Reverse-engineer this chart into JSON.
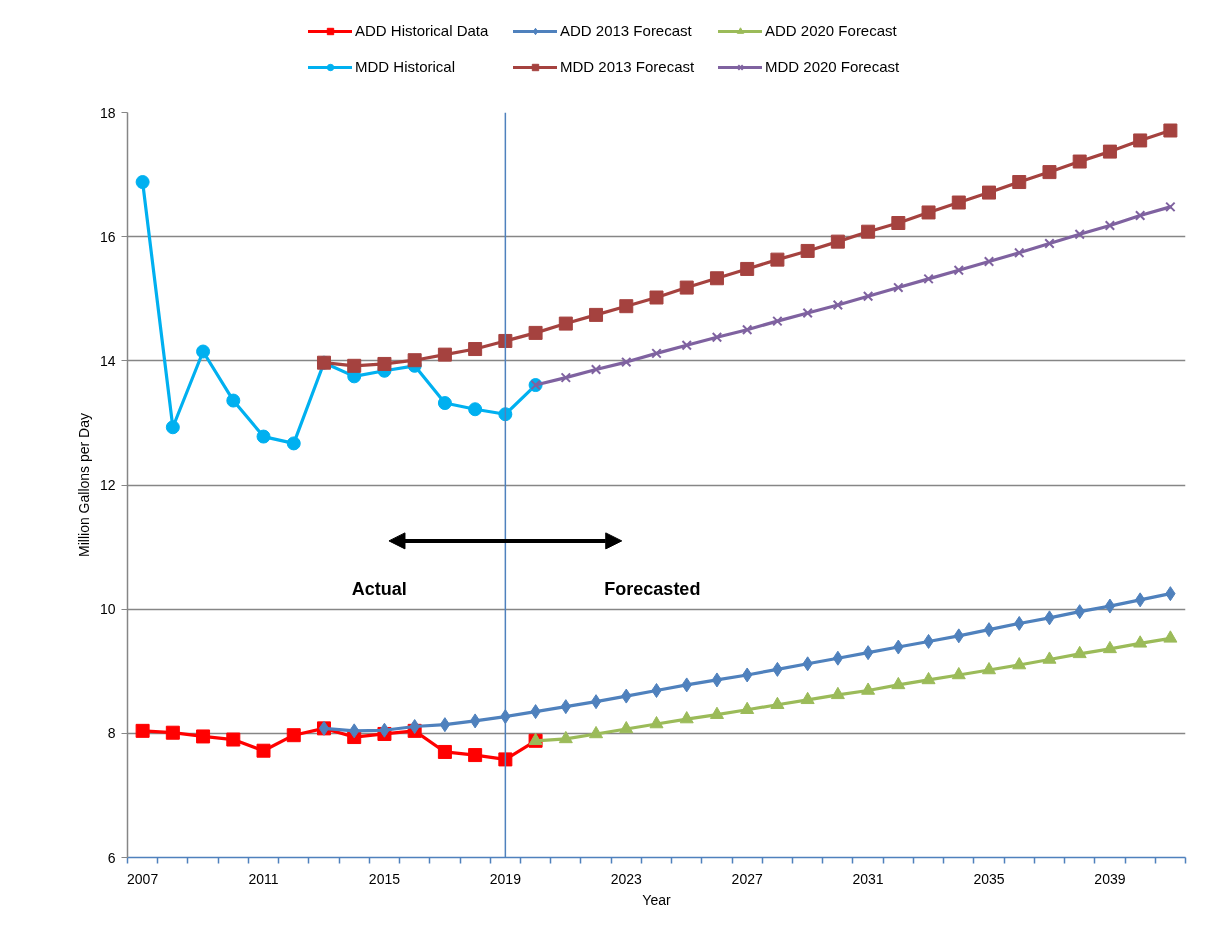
{
  "chart_data": {
    "type": "line",
    "xlabel": "Year",
    "ylabel": "Million Gallons per Day",
    "annotations": [
      "Actual",
      "Forecasted"
    ],
    "xlim": [
      2006.5,
      2041.5
    ],
    "ylim": [
      6,
      18
    ],
    "xticks": [
      2007,
      2011,
      2015,
      2019,
      2023,
      2027,
      2031,
      2035,
      2039,
      {
        "value": 2006.5,
        "label": null
      },
      {
        "value": 2007.5,
        "label": null
      },
      {
        "value": 2008.5,
        "label": null
      },
      {
        "value": 2009.5,
        "label": null
      },
      {
        "value": 2010.5,
        "label": null
      },
      {
        "value": 2011.5,
        "label": null
      },
      {
        "value": 2012.5,
        "label": null
      },
      {
        "value": 2013.5,
        "label": null
      },
      {
        "value": 2014.5,
        "label": null
      },
      {
        "value": 2015.5,
        "label": null
      },
      {
        "value": 2016.5,
        "label": null
      },
      {
        "value": 2017.5,
        "label": null
      },
      {
        "value": 2018.5,
        "label": null
      },
      {
        "value": 2019.5,
        "label": null
      },
      {
        "value": 2020.5,
        "label": null
      },
      {
        "value": 2021.5,
        "label": null
      },
      {
        "value": 2022.5,
        "label": null
      },
      {
        "value": 2023.5,
        "label": null
      },
      {
        "value": 2024.5,
        "label": null
      },
      {
        "value": 2025.5,
        "label": null
      },
      {
        "value": 2026.5,
        "label": null
      },
      {
        "value": 2027.5,
        "label": null
      },
      {
        "value": 2028.5,
        "label": null
      },
      {
        "value": 2029.5,
        "label": null
      },
      {
        "value": 2030.5,
        "label": null
      },
      {
        "value": 2031.5,
        "label": null
      },
      {
        "value": 2032.5,
        "label": null
      },
      {
        "value": 2033.5,
        "label": null
      },
      {
        "value": 2034.5,
        "label": null
      },
      {
        "value": 2035.5,
        "label": null
      },
      {
        "value": 2036.5,
        "label": null
      },
      {
        "value": 2037.5,
        "label": null
      },
      {
        "value": 2038.5,
        "label": null
      },
      {
        "value": 2039.5,
        "label": null
      },
      {
        "value": 2040.5,
        "label": null
      },
      {
        "value": 2041.5,
        "label": null
      }
    ],
    "yticks": [
      6,
      8,
      10,
      12,
      14,
      16,
      18
    ],
    "grid": "y",
    "legend": "top",
    "line_style": "solid",
    "ref_lines": [
      {
        "axis": "x",
        "value": 2019,
        "color": "#4f81bd"
      }
    ],
    "x": [
      2007,
      2008,
      2009,
      2010,
      2011,
      2012,
      2013,
      2014,
      2015,
      2016,
      2017,
      2018,
      2019,
      2020,
      2021,
      2022,
      2023,
      2024,
      2025,
      2026,
      2027,
      2028,
      2029,
      2030,
      2031,
      2032,
      2033,
      2034,
      2035,
      2036,
      2037,
      2038,
      2039,
      2040,
      2041
    ],
    "series": [
      {
        "name": "ADD Historical Data",
        "color": "#ff0000",
        "marker": "square",
        "values": [
          8.04,
          8.01,
          7.95,
          7.9,
          7.72,
          7.97,
          8.08,
          7.94,
          7.99,
          8.04,
          7.7,
          7.65,
          7.58,
          7.88,
          null,
          null,
          null,
          null,
          null,
          null,
          null,
          null,
          null,
          null,
          null,
          null,
          null,
          null,
          null,
          null,
          null,
          null,
          null,
          null,
          null
        ]
      },
      {
        "name": "ADD 2013 Forecast",
        "color": "#4f81bd",
        "marker": "diamond",
        "values": [
          null,
          null,
          null,
          null,
          null,
          null,
          8.08,
          8.04,
          8.05,
          8.11,
          8.14,
          8.2,
          8.27,
          8.35,
          8.43,
          8.51,
          8.6,
          8.69,
          8.78,
          8.86,
          8.94,
          9.03,
          9.12,
          9.21,
          9.3,
          9.39,
          9.48,
          9.57,
          9.67,
          9.77,
          9.86,
          9.96,
          10.05,
          10.15,
          10.25
        ]
      },
      {
        "name": "ADD 2020 Forecast",
        "color": "#9bbb59",
        "marker": "triangle",
        "values": [
          null,
          null,
          null,
          null,
          null,
          null,
          null,
          null,
          null,
          null,
          null,
          null,
          null,
          7.88,
          7.91,
          7.99,
          8.07,
          8.15,
          8.23,
          8.3,
          8.38,
          8.46,
          8.54,
          8.62,
          8.69,
          8.78,
          8.86,
          8.94,
          9.02,
          9.1,
          9.19,
          9.28,
          9.36,
          9.45,
          9.53
        ]
      },
      {
        "name": "MDD Historical",
        "color": "#00b0f0",
        "marker": "circle",
        "values": [
          16.88,
          12.93,
          14.15,
          13.36,
          12.78,
          12.67,
          13.97,
          13.75,
          13.84,
          13.92,
          13.32,
          13.22,
          13.14,
          13.61,
          null,
          null,
          null,
          null,
          null,
          null,
          null,
          null,
          null,
          null,
          null,
          null,
          null,
          null,
          null,
          null,
          null,
          null,
          null,
          null,
          null
        ]
      },
      {
        "name": "MDD 2013 Forecast",
        "color": "#a5423f",
        "marker": "square",
        "values": [
          null,
          null,
          null,
          null,
          null,
          null,
          13.97,
          13.92,
          13.95,
          14.01,
          14.1,
          14.19,
          14.32,
          14.45,
          14.6,
          14.74,
          14.88,
          15.02,
          15.18,
          15.33,
          15.48,
          15.63,
          15.77,
          15.92,
          16.08,
          16.22,
          16.39,
          16.55,
          16.71,
          16.88,
          17.04,
          17.21,
          17.37,
          17.55,
          17.71
        ]
      },
      {
        "name": "MDD 2020 Forecast",
        "color": "#7f62a0",
        "marker": "cross",
        "values": [
          null,
          null,
          null,
          null,
          null,
          null,
          null,
          null,
          null,
          null,
          null,
          null,
          null,
          13.61,
          13.73,
          13.86,
          13.98,
          14.12,
          14.25,
          14.38,
          14.5,
          14.64,
          14.77,
          14.9,
          15.04,
          15.18,
          15.32,
          15.46,
          15.6,
          15.74,
          15.89,
          16.04,
          16.18,
          16.34,
          16.48
        ]
      }
    ]
  }
}
